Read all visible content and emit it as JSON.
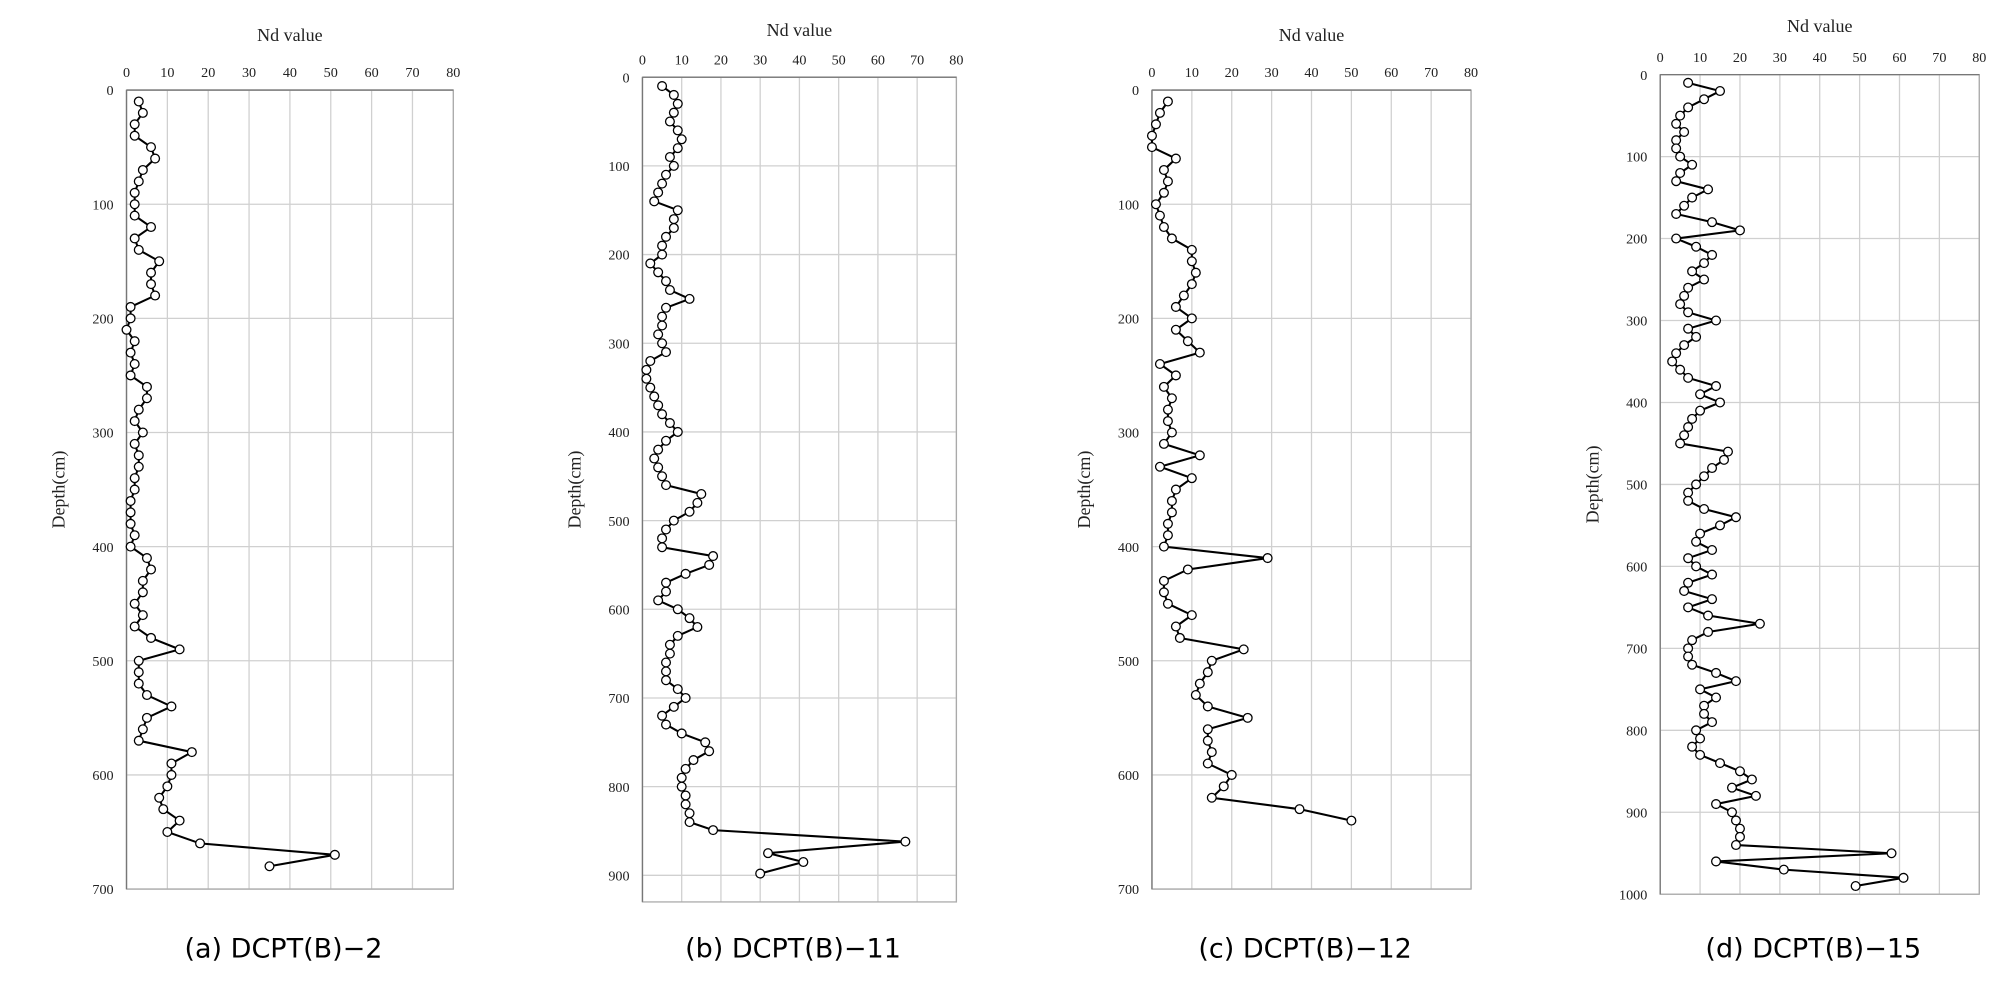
{
  "chart_data": [
    {
      "type": "line",
      "title": "(a)  DCPT(B)−2",
      "xlabel": "Nd value",
      "ylabel": "Depth(cm)",
      "xlim": [
        0,
        80
      ],
      "xticks": [
        0,
        10,
        20,
        30,
        40,
        50,
        60,
        70,
        80
      ],
      "ylim": [
        0,
        700
      ],
      "yticks": [
        0,
        100,
        200,
        300,
        400,
        500,
        600,
        700
      ],
      "y_inverted": true,
      "grid": true,
      "color": "#000000",
      "depth": [
        10,
        20,
        30,
        40,
        50,
        60,
        70,
        80,
        90,
        100,
        110,
        120,
        130,
        140,
        150,
        160,
        170,
        180,
        190,
        200,
        210,
        220,
        230,
        240,
        250,
        260,
        270,
        280,
        290,
        300,
        310,
        320,
        330,
        340,
        350,
        360,
        370,
        380,
        390,
        400,
        410,
        420,
        430,
        440,
        450,
        460,
        470,
        480,
        490,
        500,
        510,
        520,
        530,
        540,
        550,
        560,
        570,
        580,
        590,
        600,
        610,
        620,
        630,
        640,
        650,
        660,
        670,
        680
      ],
      "values": [
        3,
        4,
        2,
        2,
        6,
        7,
        4,
        3,
        2,
        2,
        2,
        6,
        2,
        3,
        8,
        6,
        6,
        7,
        1,
        1,
        0,
        2,
        1,
        2,
        1,
        5,
        5,
        3,
        2,
        4,
        2,
        3,
        3,
        2,
        2,
        1,
        1,
        1,
        2,
        1,
        5,
        6,
        4,
        4,
        2,
        4,
        2,
        6,
        13,
        3,
        3,
        3,
        5,
        11,
        5,
        4,
        3,
        16,
        11,
        11,
        10,
        8,
        9,
        13,
        10,
        18,
        51,
        35
      ]
    },
    {
      "type": "line",
      "title": "(b)  DCPT(B)−11",
      "xlabel": "Nd value",
      "ylabel": "Depth(cm)",
      "xlim": [
        0,
        80
      ],
      "xticks": [
        0,
        10,
        20,
        30,
        40,
        50,
        60,
        70,
        80
      ],
      "ylim": [
        0,
        930
      ],
      "yticks": [
        0,
        100,
        200,
        300,
        400,
        500,
        600,
        700,
        800,
        900
      ],
      "y_inverted": true,
      "grid": true,
      "color": "#000000",
      "depth": [
        10,
        20,
        30,
        40,
        50,
        60,
        70,
        80,
        90,
        100,
        110,
        120,
        130,
        140,
        150,
        160,
        170,
        180,
        190,
        200,
        210,
        220,
        230,
        240,
        250,
        260,
        270,
        280,
        290,
        300,
        310,
        320,
        330,
        340,
        350,
        360,
        370,
        380,
        390,
        400,
        410,
        420,
        430,
        440,
        450,
        460,
        470,
        480,
        490,
        500,
        510,
        520,
        530,
        540,
        550,
        560,
        570,
        580,
        590,
        600,
        610,
        620,
        630,
        640,
        650,
        660,
        670,
        680,
        690,
        700,
        710,
        720,
        730,
        740,
        750,
        760,
        770,
        780,
        790,
        800,
        810,
        820,
        830,
        840,
        849,
        862,
        875,
        885,
        898
      ],
      "values": [
        5,
        8,
        9,
        8,
        7,
        9,
        10,
        9,
        7,
        8,
        6,
        5,
        4,
        3,
        9,
        8,
        8,
        6,
        5,
        5,
        2,
        4,
        6,
        7,
        12,
        6,
        5,
        5,
        4,
        5,
        6,
        2,
        1,
        1,
        2,
        3,
        4,
        5,
        7,
        9,
        6,
        4,
        3,
        4,
        5,
        6,
        15,
        14,
        12,
        8,
        6,
        5,
        5,
        18,
        17,
        11,
        6,
        6,
        4,
        9,
        12,
        14,
        9,
        7,
        7,
        6,
        6,
        6,
        9,
        11,
        8,
        5,
        6,
        10,
        16,
        17,
        13,
        11,
        10,
        10,
        11,
        11,
        12,
        12,
        18,
        67,
        32,
        41,
        30
      ]
    },
    {
      "type": "line",
      "title": "(c)  DCPT(B)−12",
      "xlabel": "Nd value",
      "ylabel": "Depth(cm)",
      "xlim": [
        0,
        80
      ],
      "xticks": [
        0,
        10,
        20,
        30,
        40,
        50,
        60,
        70,
        80
      ],
      "ylim": [
        0,
        700
      ],
      "yticks": [
        0,
        100,
        200,
        300,
        400,
        500,
        600,
        700
      ],
      "y_inverted": true,
      "grid": true,
      "color": "#000000",
      "depth": [
        10,
        20,
        30,
        40,
        50,
        60,
        70,
        80,
        90,
        100,
        110,
        120,
        130,
        140,
        150,
        160,
        170,
        180,
        190,
        200,
        210,
        220,
        230,
        240,
        250,
        260,
        270,
        280,
        290,
        300,
        310,
        320,
        330,
        340,
        350,
        360,
        370,
        380,
        390,
        400,
        410,
        420,
        430,
        440,
        450,
        460,
        470,
        480,
        490,
        500,
        510,
        520,
        530,
        540,
        550,
        560,
        570,
        580,
        590,
        600,
        610,
        620,
        630,
        640
      ],
      "values": [
        4,
        2,
        1,
        0,
        0,
        6,
        3,
        4,
        3,
        1,
        2,
        3,
        5,
        10,
        10,
        11,
        10,
        8,
        6,
        10,
        6,
        9,
        12,
        2,
        6,
        3,
        5,
        4,
        4,
        5,
        3,
        12,
        2,
        10,
        6,
        5,
        5,
        4,
        4,
        3,
        29,
        9,
        3,
        3,
        4,
        10,
        6,
        7,
        23,
        15,
        14,
        12,
        11,
        14,
        24,
        14,
        14,
        15,
        14,
        20,
        18,
        15,
        37,
        50
      ]
    },
    {
      "type": "line",
      "title": "(d)  DCPT(B)−15",
      "xlabel": "Nd value",
      "ylabel": "Depth(cm)",
      "xlim": [
        0,
        80
      ],
      "xticks": [
        0,
        10,
        20,
        30,
        40,
        50,
        60,
        70,
        80
      ],
      "ylim": [
        0,
        1000
      ],
      "yticks": [
        0,
        100,
        200,
        300,
        400,
        500,
        600,
        700,
        800,
        900,
        1000
      ],
      "y_inverted": true,
      "grid": true,
      "color": "#000000",
      "depth": [
        10,
        20,
        30,
        40,
        50,
        60,
        70,
        80,
        90,
        100,
        110,
        120,
        130,
        140,
        150,
        160,
        170,
        180,
        190,
        200,
        210,
        220,
        230,
        240,
        250,
        260,
        270,
        280,
        290,
        300,
        310,
        320,
        330,
        340,
        350,
        360,
        370,
        380,
        390,
        400,
        410,
        420,
        430,
        440,
        450,
        460,
        470,
        480,
        490,
        500,
        510,
        520,
        530,
        540,
        550,
        560,
        570,
        580,
        590,
        600,
        610,
        620,
        630,
        640,
        650,
        660,
        670,
        680,
        690,
        700,
        710,
        720,
        730,
        740,
        750,
        760,
        770,
        780,
        790,
        800,
        810,
        820,
        830,
        840,
        850,
        860,
        870,
        880,
        890,
        900,
        910,
        920,
        930,
        940,
        950,
        960,
        970,
        980,
        990
      ],
      "values": [
        7,
        15,
        11,
        7,
        5,
        4,
        6,
        4,
        4,
        5,
        8,
        5,
        4,
        12,
        8,
        6,
        4,
        13,
        20,
        4,
        9,
        13,
        11,
        8,
        11,
        7,
        6,
        5,
        7,
        14,
        7,
        9,
        6,
        4,
        3,
        5,
        7,
        14,
        10,
        15,
        10,
        8,
        7,
        6,
        5,
        17,
        16,
        13,
        11,
        9,
        7,
        7,
        11,
        19,
        15,
        10,
        9,
        13,
        7,
        9,
        13,
        7,
        6,
        13,
        7,
        12,
        25,
        12,
        8,
        7,
        7,
        8,
        14,
        19,
        10,
        14,
        11,
        11,
        13,
        9,
        10,
        8,
        10,
        15,
        20,
        23,
        18,
        24,
        14,
        18,
        19,
        20,
        20,
        19,
        58,
        14,
        31,
        61,
        49
      ]
    }
  ]
}
